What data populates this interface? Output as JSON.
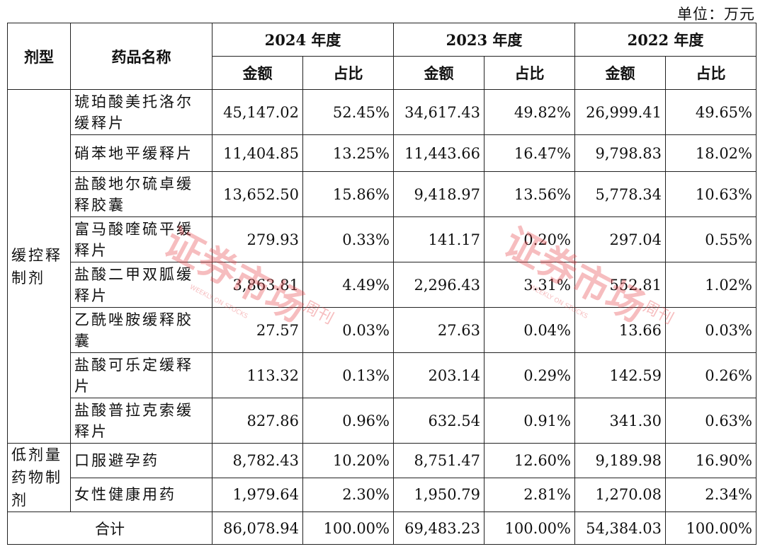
{
  "unit": "单位：万元",
  "header": {
    "type_col": "剂型",
    "name_col": "药品名称",
    "years": [
      "2024 年度",
      "2023 年度",
      "2022 年度"
    ],
    "amount": "金额",
    "ratio": "占比"
  },
  "groups": [
    {
      "type": "缓控释制剂",
      "rows": [
        {
          "name": "琥珀酸美托洛尔缓释片",
          "v": [
            "45,147.02",
            "52.45%",
            "34,617.43",
            "49.82%",
            "26,999.41",
            "49.65%"
          ]
        },
        {
          "name": "硝苯地平缓释片",
          "v": [
            "11,404.85",
            "13.25%",
            "11,443.66",
            "16.47%",
            "9,798.83",
            "18.02%"
          ]
        },
        {
          "name": "盐酸地尔硫卓缓释胶囊",
          "v": [
            "13,652.50",
            "15.86%",
            "9,418.97",
            "13.56%",
            "5,778.34",
            "10.63%"
          ]
        },
        {
          "name": "富马酸喹硫平缓释片",
          "v": [
            "279.93",
            "0.33%",
            "141.17",
            "0.20%",
            "297.04",
            "0.55%"
          ]
        },
        {
          "name": "盐酸二甲双胍缓释片",
          "v": [
            "3,863.81",
            "4.49%",
            "2,296.43",
            "3.31%",
            "552.81",
            "1.02%"
          ]
        },
        {
          "name": "乙酰唑胺缓释胶囊",
          "v": [
            "27.57",
            "0.03%",
            "27.63",
            "0.04%",
            "13.66",
            "0.03%"
          ]
        },
        {
          "name": "盐酸可乐定缓释片",
          "v": [
            "113.32",
            "0.13%",
            "203.14",
            "0.29%",
            "142.59",
            "0.26%"
          ]
        },
        {
          "name": "盐酸普拉克索缓释片",
          "v": [
            "827.86",
            "0.96%",
            "632.54",
            "0.91%",
            "341.30",
            "0.63%"
          ]
        }
      ]
    },
    {
      "type": "低剂量药物制剂",
      "rows": [
        {
          "name": "口服避孕药",
          "v": [
            "8,782.43",
            "10.20%",
            "8,751.47",
            "12.60%",
            "9,189.98",
            "16.90%"
          ]
        },
        {
          "name": "女性健康用药",
          "v": [
            "1,979.64",
            "2.30%",
            "1,950.79",
            "2.81%",
            "1,270.08",
            "2.34%"
          ]
        }
      ]
    }
  ],
  "total": {
    "label": "合计",
    "v": [
      "86,078.94",
      "100.00%",
      "69,483.23",
      "100.00%",
      "54,384.03",
      "100.00%"
    ]
  },
  "watermark": {
    "text": "证券市场周刊",
    "sub": "WEEKLY ON STOCKS",
    "color": "#e8454a"
  }
}
